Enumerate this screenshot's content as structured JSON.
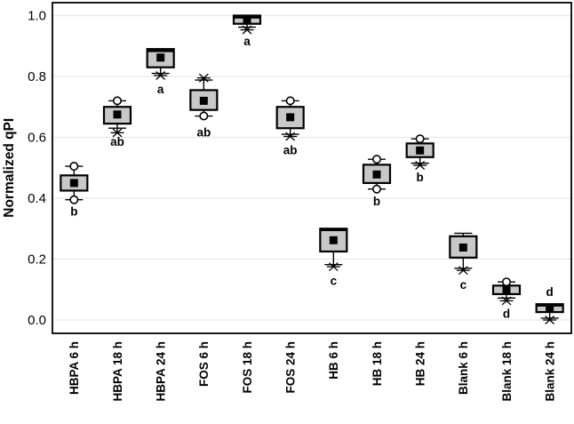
{
  "chart_data": {
    "type": "boxplot",
    "title": "",
    "xlabel": "",
    "ylabel": "Normalized qPI",
    "ylim": [
      -0.045,
      1.04
    ],
    "yticks": [
      0.0,
      0.2,
      0.4,
      0.6,
      0.8,
      1.0
    ],
    "ytick_labels": [
      "0.0",
      "0.2",
      "0.4",
      "0.6",
      "0.8",
      "1.0"
    ],
    "grid": "horizontal-light",
    "legend": "none",
    "categories": [
      "HBPA 6 h",
      "HBPA 18 h",
      "HBPA 24 h",
      "FOS 6 h",
      "FOS 18 h",
      "FOS 24 h",
      "HB 6 h",
      "HB 18 h",
      "HB 24 h",
      "Blank 6 h",
      "Blank 18 h",
      "Blank 24 h"
    ],
    "marker_legend": {
      "box": "interquartile range",
      "square": "mean",
      "thick_bar": "median",
      "circle": "whisker-end outlier circle",
      "xmark": "min/max cross marker"
    },
    "boxes": [
      {
        "category": "HBPA 6 h",
        "q1": 0.425,
        "q3": 0.475,
        "mean": 0.45,
        "median": null,
        "whisker_low": 0.395,
        "whisker_high": 0.505,
        "circle_low": 0.395,
        "circle_high": 0.505,
        "xmark_low": null,
        "xmark_high": null,
        "letter": "b",
        "letter_v": 0.357,
        "letter_position": "below"
      },
      {
        "category": "HBPA 18 h",
        "q1": 0.645,
        "q3": 0.7,
        "mean": 0.675,
        "median": null,
        "whisker_low": 0.63,
        "whisker_high": 0.72,
        "circle_low": null,
        "circle_high": 0.72,
        "xmark_low": 0.615,
        "xmark_high": null,
        "letter": "ab",
        "letter_v": 0.586,
        "letter_position": "below"
      },
      {
        "category": "HBPA 24 h",
        "q1": 0.83,
        "q3": 0.89,
        "mean": 0.862,
        "median": 0.885,
        "whisker_low": 0.81,
        "whisker_high": null,
        "circle_low": null,
        "circle_high": null,
        "xmark_low": 0.803,
        "xmark_high": null,
        "letter": "a",
        "letter_v": 0.759,
        "letter_position": "below"
      },
      {
        "category": "FOS 6 h",
        "q1": 0.69,
        "q3": 0.755,
        "mean": 0.72,
        "median": null,
        "whisker_low": 0.67,
        "whisker_high": 0.788,
        "circle_low": 0.67,
        "circle_high": null,
        "xmark_low": null,
        "xmark_high": 0.795,
        "letter": "ab",
        "letter_v": 0.617,
        "letter_position": "below"
      },
      {
        "category": "FOS 18 h",
        "q1": 0.973,
        "q3": 1.0,
        "mean": 0.985,
        "median": 0.995,
        "whisker_low": 0.962,
        "whisker_high": null,
        "circle_low": null,
        "circle_high": null,
        "xmark_low": 0.953,
        "xmark_high": null,
        "letter": "a",
        "letter_v": 0.916,
        "letter_position": "below"
      },
      {
        "category": "FOS 24 h",
        "q1": 0.63,
        "q3": 0.7,
        "mean": 0.666,
        "median": null,
        "whisker_low": 0.61,
        "whisker_high": 0.72,
        "circle_low": null,
        "circle_high": 0.72,
        "xmark_low": 0.603,
        "xmark_high": null,
        "letter": "ab",
        "letter_v": 0.559,
        "letter_position": "below"
      },
      {
        "category": "HB 6 h",
        "q1": 0.225,
        "q3": 0.3,
        "mean": 0.262,
        "median": 0.297,
        "whisker_low": 0.182,
        "whisker_high": null,
        "circle_low": null,
        "circle_high": null,
        "xmark_low": 0.175,
        "xmark_high": null,
        "letter": "c",
        "letter_v": 0.13,
        "letter_position": "below"
      },
      {
        "category": "HB 18 h",
        "q1": 0.45,
        "q3": 0.51,
        "mean": 0.478,
        "median": null,
        "whisker_low": 0.43,
        "whisker_high": 0.528,
        "circle_low": 0.43,
        "circle_high": 0.528,
        "xmark_low": null,
        "xmark_high": null,
        "letter": "b",
        "letter_v": 0.391,
        "letter_position": "below"
      },
      {
        "category": "HB 24 h",
        "q1": 0.535,
        "q3": 0.58,
        "mean": 0.557,
        "median": null,
        "whisker_low": 0.515,
        "whisker_high": 0.595,
        "circle_low": null,
        "circle_high": 0.595,
        "xmark_low": 0.508,
        "xmark_high": null,
        "letter": "b",
        "letter_v": 0.47,
        "letter_position": "below"
      },
      {
        "category": "Blank 6 h",
        "q1": 0.205,
        "q3": 0.275,
        "mean": 0.238,
        "median": null,
        "whisker_low": 0.17,
        "whisker_high": 0.285,
        "circle_low": null,
        "circle_high": null,
        "xmark_low": 0.163,
        "xmark_high": null,
        "letter": "c",
        "letter_v": 0.116,
        "letter_position": "below"
      },
      {
        "category": "Blank 18 h",
        "q1": 0.085,
        "q3": 0.113,
        "mean": 0.1,
        "median": null,
        "whisker_low": 0.072,
        "whisker_high": 0.125,
        "circle_low": null,
        "circle_high": 0.125,
        "xmark_low": 0.063,
        "xmark_high": null,
        "letter": "d",
        "letter_v": 0.022,
        "letter_position": "below"
      },
      {
        "category": "Blank 24 h",
        "q1": 0.026,
        "q3": 0.052,
        "mean": 0.041,
        "median": 0.049,
        "whisker_low": 0.006,
        "whisker_high": null,
        "circle_low": null,
        "circle_high": null,
        "xmark_low": 0.0,
        "xmark_high": null,
        "letter": "d",
        "letter_v": 0.093,
        "letter_position": "above"
      }
    ],
    "colors": {
      "box_fill": "#c8c8c8",
      "line": "#000000",
      "frame": "#1a1a1a",
      "grid": "#e7e7e7",
      "background": "#ffffff",
      "circle_fill": "#ffffff"
    }
  }
}
